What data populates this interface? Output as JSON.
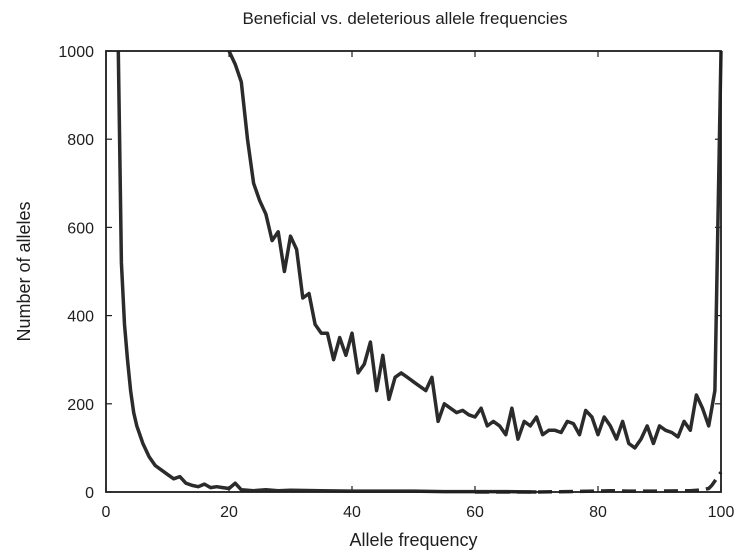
{
  "chart_data": {
    "type": "line",
    "title": "Beneficial vs. deleterious allele frequencies",
    "xlabel": "Allele frequency",
    "ylabel": "Number of alleles",
    "xlim": [
      0,
      100
    ],
    "ylim": [
      0,
      1000
    ],
    "xticks": [
      "0",
      "20",
      "40",
      "60",
      "80",
      "100"
    ],
    "yticks": [
      "0",
      "200",
      "400",
      "600",
      "800",
      "1000"
    ],
    "grid": false,
    "colors": {
      "line": "#2b2b2b",
      "axis": "#1e1e1e"
    },
    "series": [
      {
        "style": "solid",
        "x": [
          20,
          21,
          22,
          23,
          24,
          25,
          26,
          27,
          28,
          29,
          30,
          31,
          32,
          33,
          34,
          35,
          36,
          37,
          38,
          39,
          40,
          41,
          42,
          43,
          44,
          45,
          46,
          47,
          48,
          49,
          50,
          51,
          52,
          53,
          54,
          55,
          56,
          57,
          58,
          59,
          60,
          61,
          62,
          63,
          64,
          65,
          66,
          67,
          68,
          69,
          70,
          71,
          72,
          73,
          74,
          75,
          76,
          77,
          78,
          79,
          80,
          81,
          82,
          83,
          84,
          85,
          86,
          87,
          88,
          89,
          90,
          91,
          92,
          93,
          94,
          95,
          96,
          97,
          98,
          99,
          100
        ],
        "y": [
          1000,
          970,
          930,
          800,
          700,
          660,
          630,
          570,
          590,
          500,
          580,
          550,
          440,
          450,
          380,
          360,
          360,
          300,
          350,
          310,
          360,
          270,
          290,
          340,
          230,
          310,
          210,
          260,
          270,
          260,
          250,
          240,
          230,
          260,
          160,
          200,
          190,
          180,
          185,
          175,
          170,
          190,
          150,
          160,
          150,
          130,
          190,
          120,
          160,
          150,
          170,
          130,
          140,
          140,
          135,
          160,
          155,
          130,
          185,
          170,
          130,
          170,
          150,
          120,
          160,
          110,
          100,
          120,
          150,
          110,
          150,
          140,
          135,
          125,
          160,
          140,
          220,
          190,
          150,
          230,
          1000
        ]
      },
      {
        "style": "solid",
        "x": [
          2,
          2.5,
          3,
          3.5,
          4,
          4.5,
          5,
          6,
          7,
          8,
          9,
          10,
          11,
          12,
          13,
          14,
          15,
          16,
          17,
          18,
          19,
          20,
          21,
          22,
          24,
          26,
          28,
          30,
          35,
          40,
          45,
          50,
          55,
          60,
          65,
          70
        ],
        "y": [
          1000,
          520,
          380,
          300,
          230,
          180,
          150,
          110,
          80,
          60,
          50,
          40,
          30,
          35,
          20,
          15,
          12,
          18,
          10,
          12,
          10,
          8,
          20,
          5,
          3,
          5,
          3,
          4,
          3,
          2,
          2,
          2,
          1,
          1,
          1,
          0
        ]
      },
      {
        "style": "dashed",
        "x": [
          60,
          70,
          75,
          80,
          82,
          85,
          90,
          95,
          97,
          98,
          98.5,
          99,
          99.5,
          100
        ],
        "y": [
          0,
          0,
          1,
          2,
          3,
          2,
          2,
          3,
          5,
          8,
          15,
          25,
          35,
          45
        ]
      }
    ]
  }
}
